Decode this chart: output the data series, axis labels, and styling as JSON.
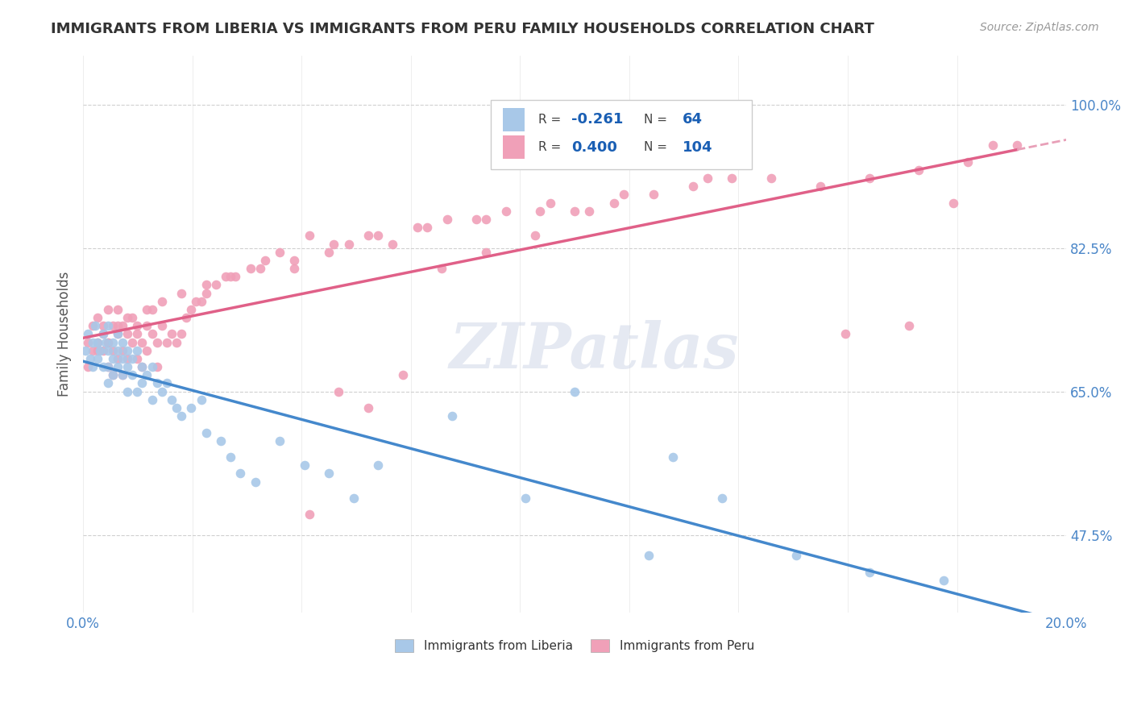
{
  "title": "IMMIGRANTS FROM LIBERIA VS IMMIGRANTS FROM PERU FAMILY HOUSEHOLDS CORRELATION CHART",
  "source": "Source: ZipAtlas.com",
  "ylabel": "Family Households",
  "xlim": [
    0.0,
    0.2
  ],
  "ylim": [
    0.38,
    1.06
  ],
  "ytick_positions": [
    0.475,
    0.65,
    0.825,
    1.0
  ],
  "ytick_labels": [
    "47.5%",
    "65.0%",
    "82.5%",
    "100.0%"
  ],
  "xtick_positions": [
    0.0,
    0.0222,
    0.0444,
    0.0667,
    0.0889,
    0.1111,
    0.1333,
    0.1556,
    0.1778,
    0.2
  ],
  "xtick_labels": [
    "0.0%",
    "",
    "",
    "",
    "",
    "",
    "",
    "",
    "",
    "20.0%"
  ],
  "background_color": "#ffffff",
  "grid_color": "#d0d0d0",
  "liberia_color": "#a8c8e8",
  "peru_color": "#f0a0b8",
  "liberia_line_color": "#4488cc",
  "peru_line_color": "#e06088",
  "peru_dash_color": "#e8a0b8",
  "liberia_r": -0.261,
  "liberia_n": 64,
  "peru_r": 0.4,
  "peru_n": 104,
  "legend_r_label_color": "#333333",
  "legend_val_color": "#1a5fb4",
  "watermark": "ZIPatlas",
  "liberia_scatter_x": [
    0.0005,
    0.001,
    0.0015,
    0.002,
    0.002,
    0.0025,
    0.003,
    0.003,
    0.0035,
    0.004,
    0.004,
    0.0045,
    0.005,
    0.005,
    0.005,
    0.005,
    0.006,
    0.006,
    0.006,
    0.007,
    0.007,
    0.007,
    0.008,
    0.008,
    0.008,
    0.009,
    0.009,
    0.009,
    0.01,
    0.01,
    0.011,
    0.011,
    0.012,
    0.012,
    0.013,
    0.014,
    0.014,
    0.015,
    0.016,
    0.017,
    0.018,
    0.019,
    0.02,
    0.022,
    0.024,
    0.025,
    0.028,
    0.03,
    0.032,
    0.035,
    0.04,
    0.045,
    0.05,
    0.055,
    0.06,
    0.075,
    0.09,
    0.1,
    0.115,
    0.12,
    0.13,
    0.145,
    0.16,
    0.175
  ],
  "liberia_scatter_y": [
    0.7,
    0.72,
    0.69,
    0.71,
    0.68,
    0.73,
    0.71,
    0.69,
    0.7,
    0.72,
    0.68,
    0.71,
    0.73,
    0.7,
    0.68,
    0.66,
    0.71,
    0.69,
    0.67,
    0.7,
    0.72,
    0.68,
    0.71,
    0.69,
    0.67,
    0.7,
    0.68,
    0.65,
    0.69,
    0.67,
    0.7,
    0.65,
    0.68,
    0.66,
    0.67,
    0.68,
    0.64,
    0.66,
    0.65,
    0.66,
    0.64,
    0.63,
    0.62,
    0.63,
    0.64,
    0.6,
    0.59,
    0.57,
    0.55,
    0.54,
    0.59,
    0.56,
    0.55,
    0.52,
    0.56,
    0.62,
    0.52,
    0.65,
    0.45,
    0.57,
    0.52,
    0.45,
    0.43,
    0.42
  ],
  "peru_scatter_x": [
    0.001,
    0.001,
    0.002,
    0.002,
    0.003,
    0.003,
    0.004,
    0.004,
    0.005,
    0.005,
    0.005,
    0.006,
    0.006,
    0.006,
    0.007,
    0.007,
    0.007,
    0.008,
    0.008,
    0.008,
    0.009,
    0.009,
    0.01,
    0.01,
    0.011,
    0.011,
    0.012,
    0.012,
    0.013,
    0.013,
    0.014,
    0.014,
    0.015,
    0.015,
    0.016,
    0.017,
    0.018,
    0.019,
    0.02,
    0.021,
    0.022,
    0.023,
    0.024,
    0.025,
    0.027,
    0.029,
    0.031,
    0.034,
    0.037,
    0.04,
    0.043,
    0.046,
    0.05,
    0.054,
    0.058,
    0.063,
    0.068,
    0.074,
    0.08,
    0.086,
    0.093,
    0.1,
    0.108,
    0.116,
    0.124,
    0.132,
    0.14,
    0.15,
    0.16,
    0.17,
    0.18,
    0.19,
    0.003,
    0.004,
    0.005,
    0.007,
    0.009,
    0.011,
    0.013,
    0.016,
    0.02,
    0.025,
    0.03,
    0.036,
    0.043,
    0.051,
    0.06,
    0.07,
    0.082,
    0.095,
    0.11,
    0.127,
    0.155,
    0.168,
    0.177,
    0.185,
    0.046,
    0.052,
    0.058,
    0.065,
    0.073,
    0.082,
    0.092,
    0.103
  ],
  "peru_scatter_y": [
    0.71,
    0.68,
    0.73,
    0.7,
    0.74,
    0.71,
    0.73,
    0.7,
    0.75,
    0.71,
    0.68,
    0.73,
    0.7,
    0.67,
    0.72,
    0.69,
    0.75,
    0.73,
    0.7,
    0.67,
    0.72,
    0.69,
    0.71,
    0.74,
    0.72,
    0.69,
    0.71,
    0.68,
    0.73,
    0.7,
    0.72,
    0.75,
    0.71,
    0.68,
    0.73,
    0.71,
    0.72,
    0.71,
    0.72,
    0.74,
    0.75,
    0.76,
    0.76,
    0.77,
    0.78,
    0.79,
    0.79,
    0.8,
    0.81,
    0.82,
    0.8,
    0.84,
    0.82,
    0.83,
    0.84,
    0.83,
    0.85,
    0.86,
    0.86,
    0.87,
    0.87,
    0.87,
    0.88,
    0.89,
    0.9,
    0.91,
    0.91,
    0.9,
    0.91,
    0.92,
    0.93,
    0.95,
    0.7,
    0.72,
    0.71,
    0.73,
    0.74,
    0.73,
    0.75,
    0.76,
    0.77,
    0.78,
    0.79,
    0.8,
    0.81,
    0.83,
    0.84,
    0.85,
    0.86,
    0.88,
    0.89,
    0.91,
    0.72,
    0.73,
    0.88,
    0.95,
    0.5,
    0.65,
    0.63,
    0.67,
    0.8,
    0.82,
    0.84,
    0.87
  ]
}
